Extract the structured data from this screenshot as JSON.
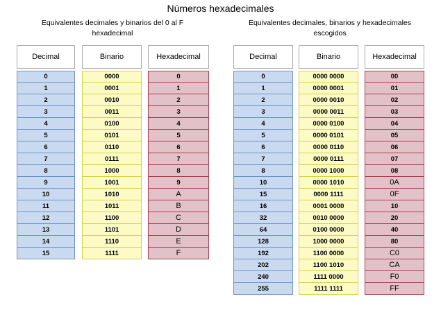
{
  "title": "Números hexadecimales",
  "left_table": {
    "subtitle_line1": "Equivalentes decimales y binarios del 0 al F",
    "subtitle_line2": "hexadecimal",
    "headers": {
      "decimal": "Decimal",
      "binary": "Binario",
      "hex": "Hexadecimal"
    },
    "decimal": [
      "0",
      "1",
      "2",
      "3",
      "4",
      "5",
      "6",
      "7",
      "8",
      "9",
      "10",
      "11",
      "12",
      "13",
      "14",
      "15"
    ],
    "binary": [
      "0000",
      "0001",
      "0010",
      "0011",
      "0100",
      "0101",
      "0110",
      "0111",
      "1000",
      "1001",
      "1010",
      "1011",
      "1100",
      "1101",
      "1110",
      "1111"
    ],
    "hex": [
      "0",
      "1",
      "2",
      "3",
      "4",
      "5",
      "6",
      "7",
      "8",
      "9",
      "A",
      "B",
      "C",
      "D",
      "E",
      "F"
    ]
  },
  "right_table": {
    "subtitle_line1": "Equivalentes decimales, binarios y hexadecimales",
    "subtitle_line2": "escogidos",
    "headers": {
      "decimal": "Decimal",
      "binary": "Binario",
      "hex": "Hexadecimal"
    },
    "decimal": [
      "0",
      "1",
      "2",
      "3",
      "4",
      "5",
      "6",
      "7",
      "8",
      "10",
      "15",
      "16",
      "32",
      "64",
      "128",
      "192",
      "202",
      "240",
      "255"
    ],
    "binary": [
      "0000 0000",
      "0000 0001",
      "0000 0010",
      "0000 0011",
      "0000 0100",
      "0000 0101",
      "0000 0110",
      "0000 0111",
      "0000 1000",
      "0000 1010",
      "0000 1111",
      "0001 0000",
      "0010 0000",
      "0100 0000",
      "1000 0000",
      "1100 0000",
      "1100 1010",
      "1111 0000",
      "1111 1111"
    ],
    "hex": [
      "00",
      "01",
      "02",
      "03",
      "04",
      "05",
      "06",
      "07",
      "08",
      "0A",
      "0F",
      "10",
      "20",
      "40",
      "80",
      "C0",
      "CA",
      "F0",
      "FF"
    ]
  },
  "colors": {
    "decimal_fill": "#c9daf0",
    "binary_fill": "#fcfbc5",
    "hex_fill": "#e2c2c8"
  }
}
